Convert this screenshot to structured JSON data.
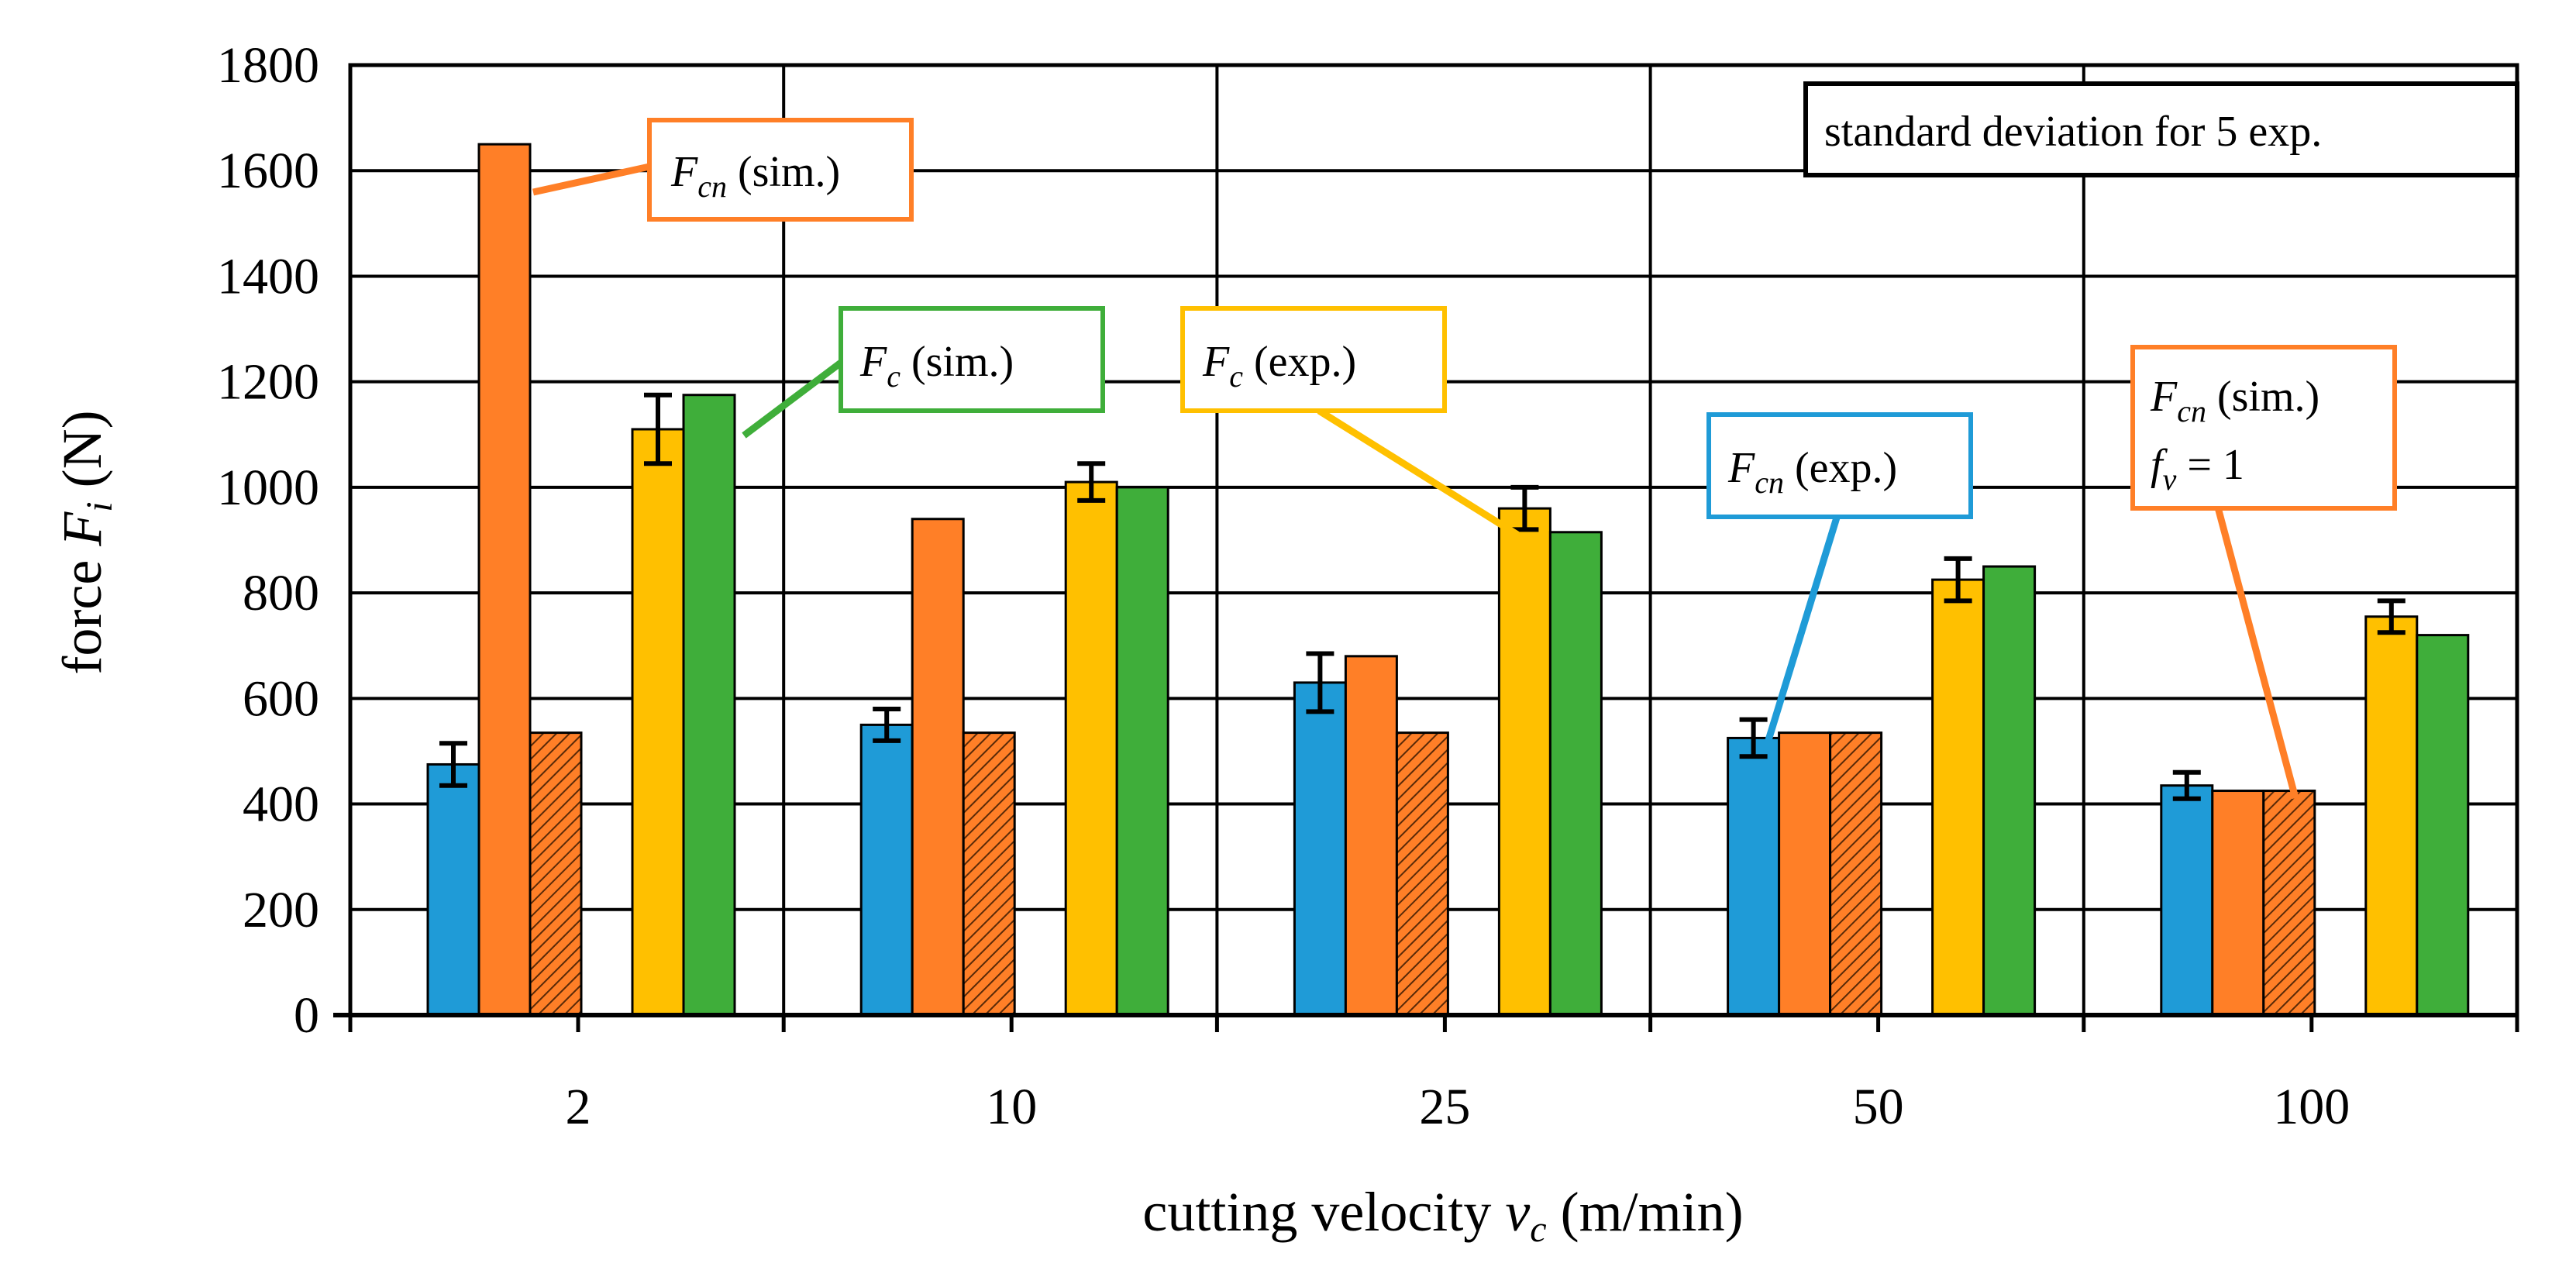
{
  "chart_data": {
    "type": "bar",
    "xlabel": "cutting velocity v_c (m/min)",
    "xlabel_prefix": "cutting velocity ",
    "xlabel_var": "v",
    "xlabel_sub": "c",
    "xlabel_unit": " (m/min)",
    "ylabel": "force F_i (N)",
    "ylabel_prefix": "force ",
    "ylabel_var": "F",
    "ylabel_sub": "i",
    "ylabel_unit": " (N)",
    "ylim": [
      0,
      1800
    ],
    "yticks": [
      0,
      200,
      400,
      600,
      800,
      1000,
      1200,
      1400,
      1600,
      1800
    ],
    "grid": true,
    "categories": [
      "2",
      "10",
      "25",
      "50",
      "100"
    ],
    "series": [
      {
        "name": "F_cn (exp.)",
        "color": "#1F9BD7",
        "pattern": false,
        "values": [
          475,
          550,
          630,
          525,
          435
        ],
        "errors": [
          40,
          30,
          55,
          35,
          25
        ]
      },
      {
        "name": "F_cn (sim.)",
        "color": "#FF7F27",
        "pattern": false,
        "values": [
          1650,
          940,
          680,
          535,
          425
        ],
        "errors": null
      },
      {
        "name": "F_cn (sim.) f_v = 1",
        "color": "#FF7F27",
        "pattern": true,
        "values": [
          535,
          535,
          535,
          535,
          425
        ],
        "errors": null
      },
      {
        "name": "F_c (exp.)",
        "color": "#FFC000",
        "pattern": false,
        "values": [
          1110,
          1010,
          960,
          825,
          755
        ],
        "errors": [
          65,
          35,
          40,
          40,
          30
        ]
      },
      {
        "name": "F_c (sim.)",
        "color": "#3FAE3A",
        "pattern": false,
        "values": [
          1175,
          1000,
          915,
          850,
          720
        ],
        "errors": null
      }
    ],
    "annotations": [
      {
        "id": "std-box",
        "text": "standard deviation for 5 exp.",
        "border": "#000000"
      },
      {
        "id": "fcn-sim",
        "var": "F",
        "sub": "cn",
        "rest": " (sim.)",
        "border": "#FF7F27"
      },
      {
        "id": "fc-sim",
        "var": "F",
        "sub": "c",
        "rest": " (sim.)",
        "border": "#3FAE3A"
      },
      {
        "id": "fc-exp",
        "var": "F",
        "sub": "c",
        "rest": " (exp.)",
        "border": "#FFC000"
      },
      {
        "id": "fcn-exp",
        "var": "F",
        "sub": "cn",
        "rest": " (exp.)",
        "border": "#1F9BD7"
      },
      {
        "id": "fcn-sim-fv",
        "var": "F",
        "sub": "cn",
        "rest": " (sim.)",
        "line2_var": "f",
        "line2_sub": "v",
        "line2_rest": " = 1",
        "border": "#FF7F27"
      }
    ]
  }
}
